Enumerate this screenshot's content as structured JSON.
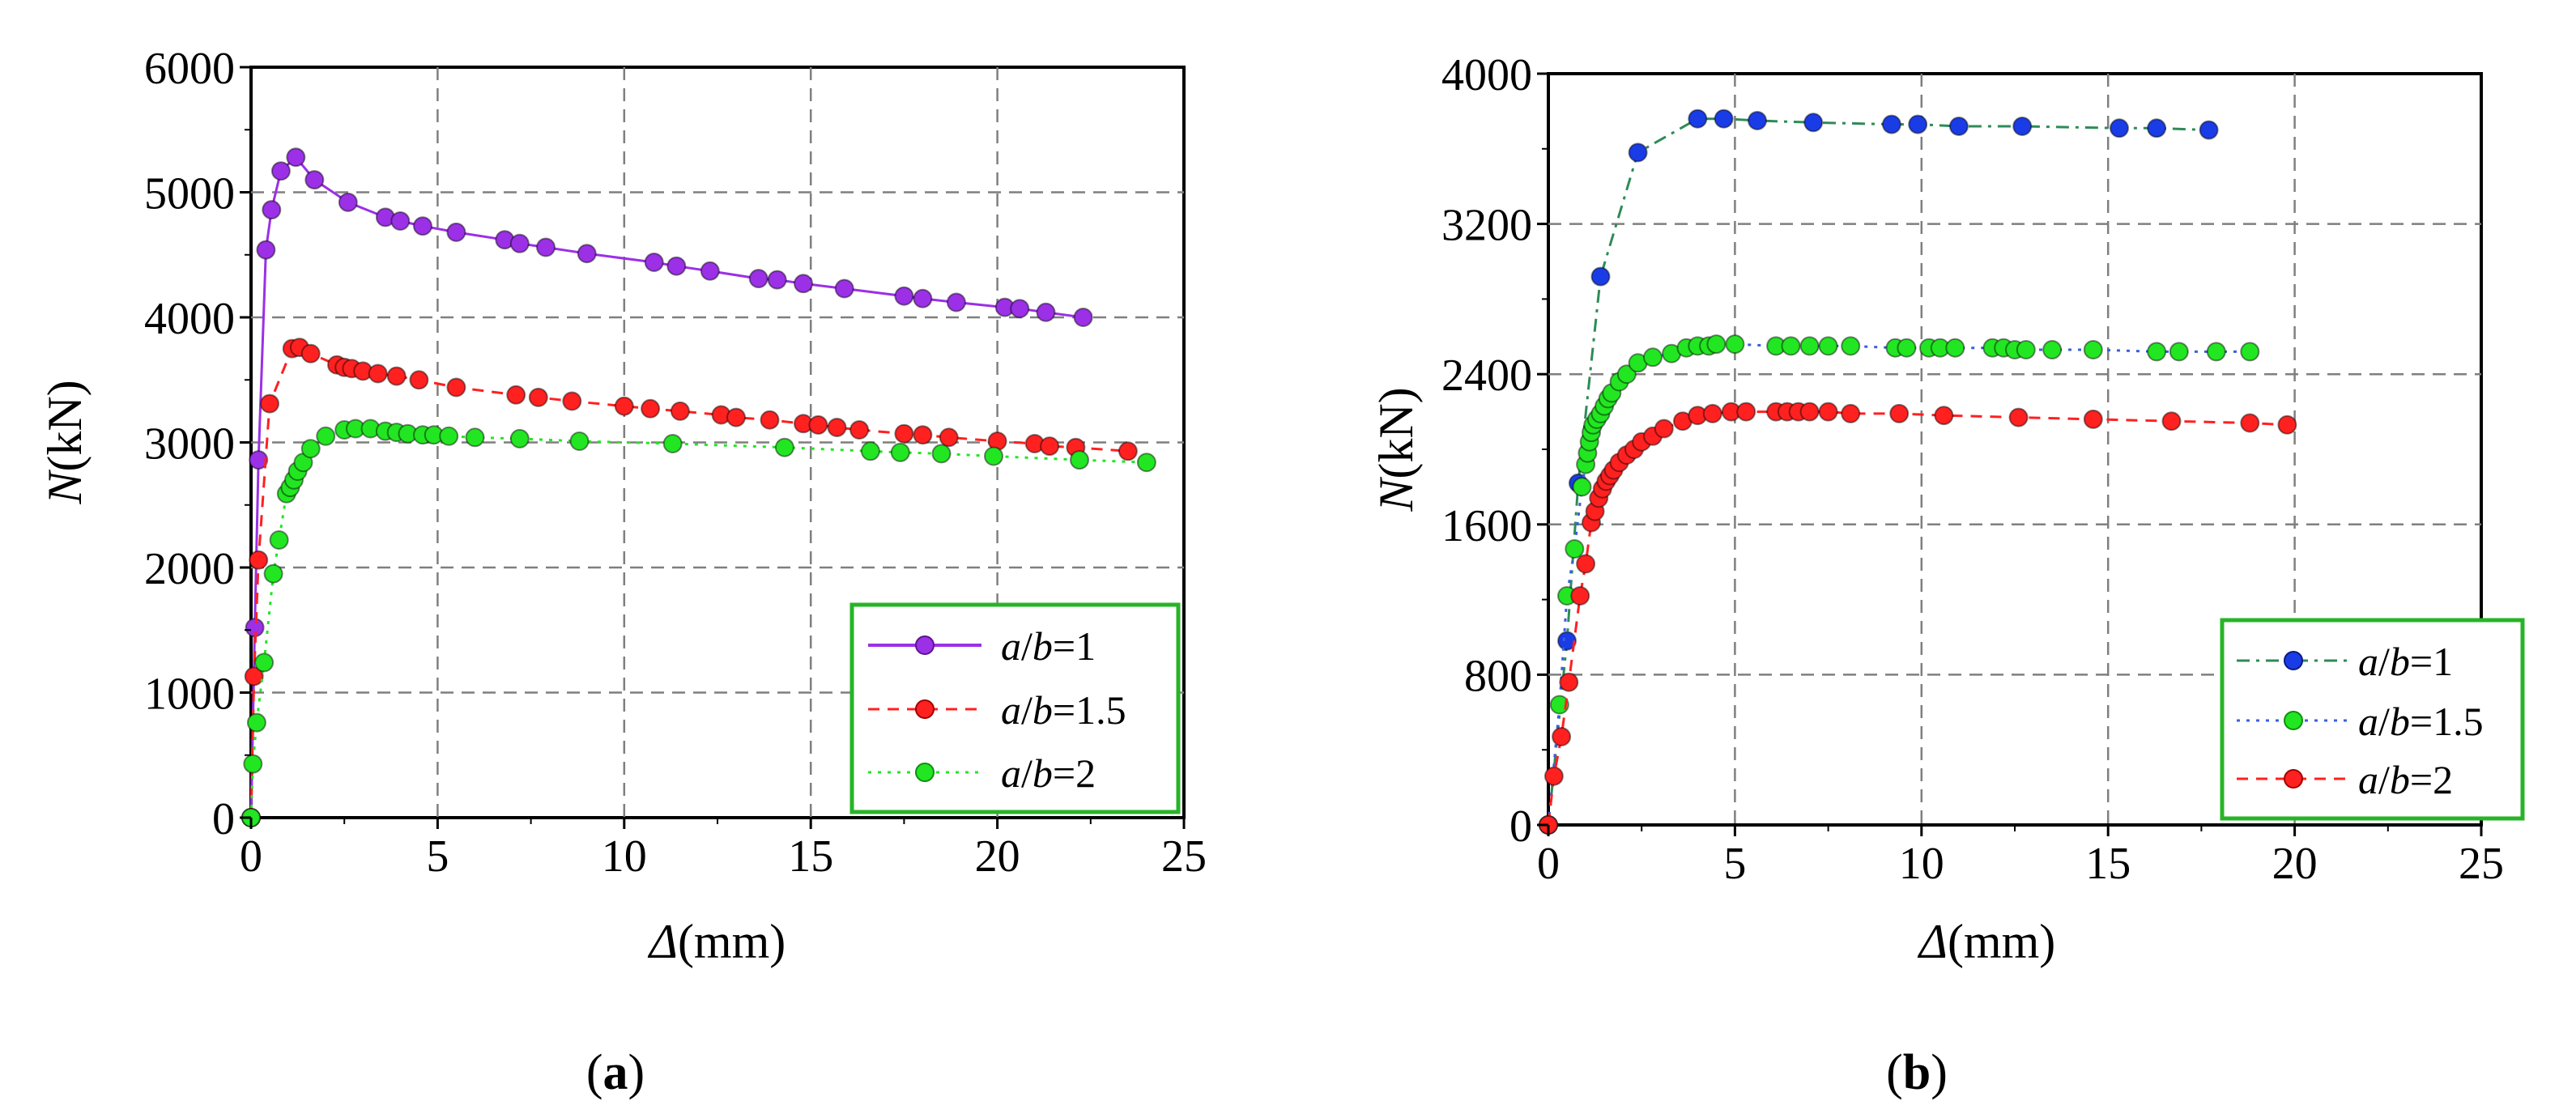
{
  "chart_data": [
    {
      "type": "line",
      "panel_label": "a",
      "xlabel": {
        "symbol": "Δ",
        "unit": "(mm)"
      },
      "ylabel": {
        "symbol": "N",
        "unit": "(kN)"
      },
      "xlim": [
        0,
        25
      ],
      "ylim": [
        0,
        6000
      ],
      "x_ticks": [
        0,
        5,
        10,
        15,
        20,
        25
      ],
      "y_ticks": [
        0,
        1000,
        2000,
        3000,
        4000,
        5000,
        6000
      ],
      "grid": true,
      "legend_position": "bottom-right",
      "series": [
        {
          "name": {
            "a": "a",
            "sep": "/",
            "b": "b",
            "value": "=1"
          },
          "color": "#9b30e6",
          "dash": "solid",
          "x": [
            0,
            0.1,
            0.2,
            0.4,
            0.55,
            0.8,
            1.2,
            1.7,
            2.6,
            3.6,
            4,
            4.6,
            5.5,
            6.8,
            7.2,
            7.9,
            9.0,
            10.8,
            11.4,
            12.3,
            13.6,
            14.1,
            14.8,
            15.9,
            17.5,
            18.0,
            18.9,
            20.2,
            20.6,
            21.3,
            22.3
          ],
          "y": [
            0,
            1520,
            2860,
            4540,
            4860,
            5170,
            5280,
            5100,
            4920,
            4800,
            4770,
            4730,
            4680,
            4620,
            4590,
            4560,
            4510,
            4440,
            4410,
            4370,
            4310,
            4300,
            4270,
            4230,
            4170,
            4150,
            4120,
            4080,
            4070,
            4040,
            4000
          ]
        },
        {
          "name": {
            "a": "a",
            "sep": "/",
            "b": "b",
            "value": "=1.5"
          },
          "color": "#ff2020",
          "dash": "dashed",
          "x": [
            0,
            0.08,
            0.2,
            0.5,
            1.1,
            1.3,
            1.6,
            2.3,
            2.5,
            2.7,
            3.0,
            3.4,
            3.9,
            4.5,
            5.5,
            7.1,
            7.7,
            8.6,
            10.0,
            10.7,
            11.5,
            12.6,
            13.0,
            13.9,
            14.8,
            15.2,
            15.7,
            16.3,
            17.5,
            18.0,
            18.7,
            20.0,
            21.0,
            21.4,
            22.1,
            23.5
          ],
          "y": [
            0,
            1130,
            2060,
            3310,
            3750,
            3760,
            3710,
            3620,
            3600,
            3590,
            3570,
            3550,
            3530,
            3500,
            3440,
            3380,
            3360,
            3330,
            3290,
            3270,
            3250,
            3220,
            3200,
            3180,
            3150,
            3140,
            3120,
            3100,
            3070,
            3060,
            3040,
            3010,
            2990,
            2970,
            2960,
            2930
          ]
        },
        {
          "name": {
            "a": "a",
            "sep": "/",
            "b": "b",
            "value": "=2"
          },
          "color": "#22e622",
          "dash": "dotted",
          "x": [
            0,
            0.05,
            0.15,
            0.35,
            0.6,
            0.75,
            0.95,
            1.05,
            1.15,
            1.25,
            1.4,
            1.6,
            2.0,
            2.5,
            2.8,
            3.2,
            3.6,
            3.9,
            4.2,
            4.6,
            4.9,
            5.3,
            6.0,
            7.2,
            8.8,
            11.3,
            14.3,
            16.6,
            17.4,
            18.5,
            19.9,
            22.2,
            24.0
          ],
          "y": [
            0,
            430,
            760,
            1240,
            1950,
            2220,
            2590,
            2640,
            2700,
            2770,
            2840,
            2950,
            3050,
            3100,
            3110,
            3110,
            3090,
            3080,
            3070,
            3060,
            3060,
            3050,
            3040,
            3030,
            3010,
            2990,
            2960,
            2930,
            2920,
            2910,
            2890,
            2860,
            2840
          ]
        }
      ]
    },
    {
      "type": "line",
      "panel_label": "b",
      "xlabel": {
        "symbol": "Δ",
        "unit": "(mm)"
      },
      "ylabel": {
        "symbol": "N",
        "unit": "(kN)"
      },
      "xlim": [
        0,
        25
      ],
      "ylim": [
        0,
        4000
      ],
      "x_ticks": [
        0,
        5,
        10,
        15,
        20,
        25
      ],
      "y_ticks": [
        0,
        800,
        1600,
        2400,
        3200,
        4000
      ],
      "grid": true,
      "legend_position": "bottom-right",
      "series": [
        {
          "name": {
            "a": "a",
            "sep": "/",
            "b": "b",
            "value": "=1"
          },
          "color": "#1a3ce6",
          "line_color": "#2e8b57",
          "dash": "dashdot",
          "x": [
            0,
            0.5,
            0.8,
            1.4,
            2.4,
            4.0,
            4.7,
            5.6,
            7.1,
            9.2,
            9.9,
            11.0,
            12.7,
            15.3,
            16.3,
            17.7
          ],
          "y": [
            0,
            980,
            1820,
            2920,
            3580,
            3760,
            3760,
            3750,
            3740,
            3730,
            3730,
            3720,
            3720,
            3710,
            3710,
            3700
          ]
        },
        {
          "name": {
            "a": "a",
            "sep": "/",
            "b": "b",
            "value": "=1.5"
          },
          "color": "#22e622",
          "line_color": "#3a5fe0",
          "dash": "dotted",
          "x": [
            0,
            0.3,
            0.5,
            0.7,
            0.9,
            1.0,
            1.05,
            1.1,
            1.15,
            1.2,
            1.3,
            1.4,
            1.5,
            1.6,
            1.7,
            1.9,
            2.1,
            2.4,
            2.8,
            3.3,
            3.7,
            4.0,
            4.3,
            4.5,
            5.0,
            6.1,
            6.5,
            7.0,
            7.5,
            8.1,
            9.3,
            9.6,
            10.2,
            10.5,
            10.9,
            11.9,
            12.2,
            12.5,
            12.8,
            13.5,
            14.6,
            16.3,
            16.9,
            17.9,
            18.8
          ],
          "y": [
            0,
            640,
            1220,
            1470,
            1800,
            1920,
            1980,
            2040,
            2090,
            2130,
            2160,
            2190,
            2230,
            2270,
            2300,
            2360,
            2400,
            2460,
            2490,
            2510,
            2540,
            2550,
            2550,
            2560,
            2560,
            2550,
            2550,
            2550,
            2550,
            2550,
            2540,
            2540,
            2540,
            2540,
            2540,
            2540,
            2540,
            2530,
            2530,
            2530,
            2530,
            2520,
            2520,
            2520,
            2520
          ]
        },
        {
          "name": {
            "a": "a",
            "sep": "/",
            "b": "b",
            "value": "=2"
          },
          "color": "#ff2020",
          "dash": "dashed",
          "x": [
            0,
            0.15,
            0.35,
            0.55,
            0.85,
            1.0,
            1.15,
            1.25,
            1.35,
            1.45,
            1.55,
            1.65,
            1.75,
            1.9,
            2.1,
            2.3,
            2.5,
            2.8,
            3.1,
            3.6,
            4.0,
            4.4,
            4.9,
            5.3,
            6.1,
            6.4,
            6.7,
            7.0,
            7.5,
            8.1,
            9.4,
            10.6,
            12.6,
            14.6,
            16.7,
            18.8,
            19.8
          ],
          "y": [
            0,
            260,
            470,
            760,
            1220,
            1390,
            1610,
            1670,
            1740,
            1790,
            1830,
            1860,
            1890,
            1930,
            1970,
            2000,
            2040,
            2070,
            2110,
            2150,
            2180,
            2190,
            2200,
            2200,
            2200,
            2200,
            2200,
            2200,
            2200,
            2190,
            2190,
            2180,
            2170,
            2160,
            2150,
            2140,
            2130
          ]
        }
      ]
    }
  ]
}
